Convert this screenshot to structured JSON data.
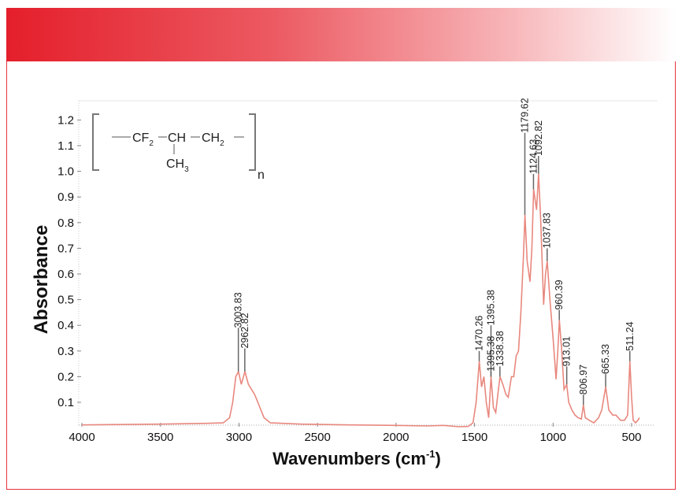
{
  "chart_data": {
    "type": "line",
    "title": "",
    "xlabel": "Wavenumbers (cm",
    "xlabel_sup": "-1",
    "xlabel_end": ")",
    "ylabel": "Absorbance",
    "xlim": [
      4000,
      450
    ],
    "ylim": [
      0,
      1.25
    ],
    "x_reversed": true,
    "grid": false,
    "line_color": "#e8887e",
    "x_ticks": [
      4000,
      3500,
      3000,
      2500,
      2000,
      1500,
      1000,
      500
    ],
    "y_ticks": [
      0.1,
      0.2,
      0.3,
      0.4,
      0.5,
      0.6,
      0.7,
      0.8,
      0.9,
      1.0,
      1.1,
      1.2
    ],
    "series": [
      {
        "x": [
          4000,
          3500,
          3200,
          3100,
          3060,
          3040,
          3020,
          3003,
          2985,
          2962,
          2940,
          2920,
          2900,
          2880,
          2860,
          2840,
          2800,
          2600,
          2300,
          2000,
          1800,
          1700,
          1600,
          1540,
          1510,
          1490,
          1470,
          1455,
          1440,
          1425,
          1410,
          1395,
          1380,
          1365,
          1350,
          1338,
          1320,
          1300,
          1285,
          1265,
          1250,
          1235,
          1220,
          1205,
          1190,
          1179,
          1165,
          1147,
          1135,
          1124,
          1105,
          1092,
          1078,
          1060,
          1048,
          1037,
          1020,
          1000,
          981,
          970,
          960,
          945,
          930,
          913,
          900,
          880,
          860,
          840,
          820,
          807,
          795,
          770,
          740,
          710,
          690,
          665,
          645,
          620,
          600,
          570,
          545,
          525,
          511,
          500,
          490,
          475,
          460,
          450
        ],
        "y": [
          0.012,
          0.015,
          0.018,
          0.02,
          0.04,
          0.1,
          0.2,
          0.22,
          0.17,
          0.22,
          0.17,
          0.15,
          0.13,
          0.1,
          0.07,
          0.04,
          0.02,
          0.015,
          0.012,
          0.01,
          0.008,
          0.01,
          0.005,
          0.006,
          0.02,
          0.1,
          0.26,
          0.16,
          0.2,
          0.1,
          0.04,
          0.2,
          0.08,
          0.06,
          0.14,
          0.2,
          0.17,
          0.13,
          0.12,
          0.2,
          0.2,
          0.28,
          0.3,
          0.45,
          0.65,
          0.83,
          0.65,
          0.57,
          0.7,
          0.93,
          0.85,
          0.99,
          0.8,
          0.48,
          0.6,
          0.65,
          0.5,
          0.35,
          0.19,
          0.3,
          0.42,
          0.3,
          0.15,
          0.17,
          0.1,
          0.07,
          0.05,
          0.04,
          0.035,
          0.09,
          0.04,
          0.03,
          0.02,
          0.04,
          0.07,
          0.16,
          0.07,
          0.05,
          0.05,
          0.03,
          0.03,
          0.05,
          0.26,
          0.12,
          0.03,
          0.02,
          0.03,
          0.04
        ]
      }
    ],
    "peak_labels": [
      {
        "x": 3003.83,
        "y": 0.22,
        "text": "3003.83"
      },
      {
        "x": 2962.82,
        "y": 0.22,
        "text": "2962.82"
      },
      {
        "x": 1470.26,
        "y": 0.26,
        "text": "1470.26"
      },
      {
        "x": 1395.38,
        "y": 0.2,
        "text": "1395.38"
      },
      {
        "x": 1395.38,
        "y": 0.2,
        "text": "1395.38"
      },
      {
        "x": 1338.38,
        "y": 0.2,
        "text": "1338.38"
      },
      {
        "x": 1179.62,
        "y": 0.83,
        "text": "1179.62"
      },
      {
        "x": 1124.63,
        "y": 0.93,
        "text": "1124.63"
      },
      {
        "x": 1092.82,
        "y": 0.99,
        "text": "1092.82"
      },
      {
        "x": 1037.83,
        "y": 0.65,
        "text": "1037.83"
      },
      {
        "x": 960.39,
        "y": 0.42,
        "text": "960.39"
      },
      {
        "x": 913.01,
        "y": 0.17,
        "text": "913.01"
      },
      {
        "x": 806.97,
        "y": 0.09,
        "text": "806.97"
      },
      {
        "x": 665.33,
        "y": 0.16,
        "text": "665.33"
      },
      {
        "x": 511.24,
        "y": 0.26,
        "text": "511.24"
      }
    ]
  },
  "structure": {
    "cf": "CF",
    "cf_sub": "2",
    "ch": "CH",
    "ch2": "CH",
    "ch2_sub": "2",
    "ch3": "CH",
    "ch3_sub": "3",
    "n": "n"
  }
}
